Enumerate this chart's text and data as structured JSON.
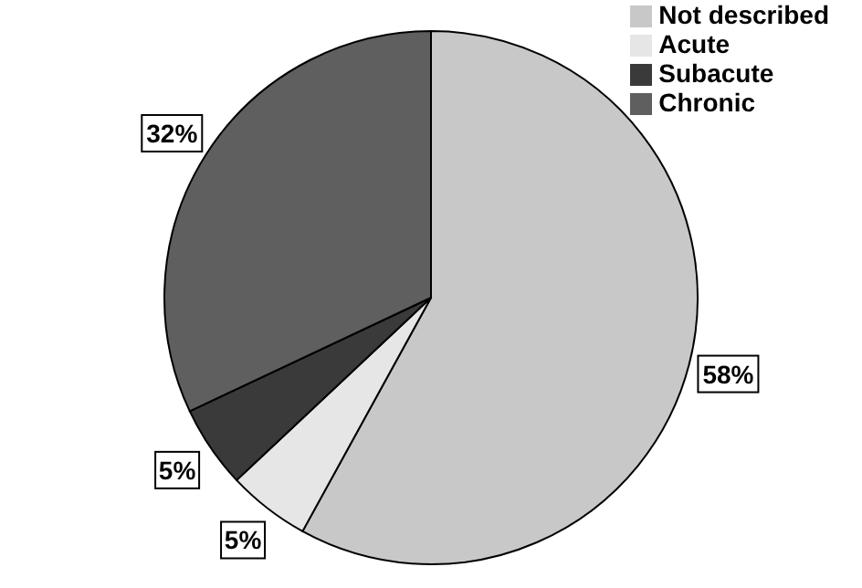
{
  "chart_data": {
    "type": "pie",
    "categories": [
      "Not described",
      "Acute",
      "Subacute",
      "Chronic"
    ],
    "values": [
      58,
      5,
      5,
      32
    ],
    "colors": [
      "#c8c8c8",
      "#e6e6e6",
      "#3a3a3a",
      "#5f5f5f"
    ],
    "value_labels": [
      "58%",
      "5%",
      "5%",
      "32%"
    ],
    "legend": "top right"
  }
}
